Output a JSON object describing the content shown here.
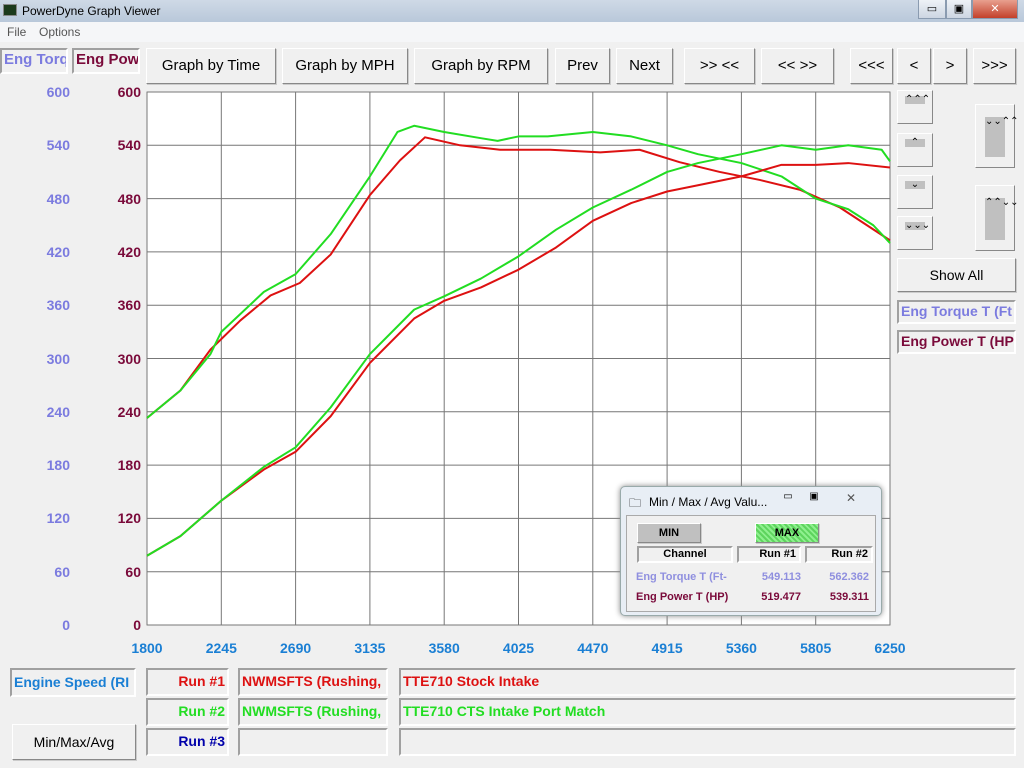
{
  "window": {
    "title": "PowerDyne Graph Viewer",
    "min": "▭",
    "max": "▣",
    "close": "✕"
  },
  "menu": [
    "File",
    "Options"
  ],
  "legend_top": {
    "torque": "Eng Torq",
    "power": "Eng Powe"
  },
  "toolbar": [
    "Graph by Time",
    "Graph by MPH",
    "Graph by RPM",
    "Prev",
    "Next",
    ">> <<",
    "<< >>",
    "<<<",
    "<",
    ">",
    ">>>"
  ],
  "right_panel": {
    "up_fast": "⌃⌃⌃",
    "up": "⌃",
    "down": "⌄",
    "down_fast": "⌄⌄⌄",
    "expand": "⌄⌄⌃⌃",
    "collapse": "⌃⌃⌄⌄",
    "show_all": "Show All",
    "channels": [
      "Eng Torque T (Ft",
      "Eng Power T (HP"
    ]
  },
  "bottom": {
    "x_channel": "Engine Speed (RI",
    "runs": [
      {
        "label": "Run #1",
        "name": "NWMSFTS (Rushing,",
        "desc": "TTE710 Stock Intake"
      },
      {
        "label": "Run #2",
        "name": "NWMSFTS (Rushing,",
        "desc": "TTE710 CTS Intake Port Match"
      },
      {
        "label": "Run #3",
        "name": "",
        "desc": ""
      }
    ],
    "minmax_button": "Min/Max/Avg"
  },
  "popup": {
    "title": "Min / Max / Avg Valu...",
    "min": "MIN",
    "max": "MAX",
    "headers": [
      "Channel",
      "Run #1",
      "Run #2"
    ],
    "rows": [
      {
        "channel": "Eng Torque T (Ft-",
        "run1": "549.113",
        "run2": "562.362"
      },
      {
        "channel": "Eng Power T (HP)",
        "run1": "519.477",
        "run2": "539.311"
      }
    ]
  },
  "colors": {
    "torque_axis": "#7b7bdf",
    "power_axis": "#7a0a3a",
    "x_axis": "#1a7fd4",
    "run1": "#dd1111",
    "run2": "#22dd22",
    "run3": "#0000aa"
  },
  "chart_data": {
    "type": "line",
    "xlim": [
      1800,
      6250
    ],
    "ylim": [
      0,
      600
    ],
    "grid": true,
    "x_ticks": [
      "1800",
      "2245",
      "2690",
      "3135",
      "3580",
      "4025",
      "4470",
      "4915",
      "5360",
      "5805",
      "6250"
    ],
    "y_ticks_torque": [
      "600",
      "540",
      "480",
      "420",
      "360",
      "300",
      "240",
      "180",
      "120",
      "60",
      "0"
    ],
    "y_ticks_power": [
      "600",
      "540",
      "480",
      "420",
      "360",
      "300",
      "240",
      "180",
      "120",
      "60",
      "0"
    ],
    "series": [
      {
        "name": "Run #1 Eng Torque",
        "color": "#dd1111",
        "x": [
          1800,
          2000,
          2180,
          2360,
          2540,
          2715,
          2900,
          3135,
          3315,
          3465,
          3675,
          3915,
          4215,
          4515,
          4750,
          4990,
          5230,
          5470,
          5710,
          5950,
          6250
        ],
        "y": [
          233,
          264,
          310,
          343,
          371,
          385,
          417,
          484,
          523,
          549,
          540,
          535,
          535,
          532,
          535,
          521,
          510,
          501,
          490,
          470,
          433
        ]
      },
      {
        "name": "Run #2 Eng Torque",
        "color": "#22dd22",
        "x": [
          1800,
          2000,
          2180,
          2245,
          2500,
          2690,
          2900,
          3135,
          3300,
          3400,
          3580,
          3800,
          3900,
          4025,
          4200,
          4470,
          4700,
          4915,
          5100,
          5360,
          5600,
          5805,
          6000,
          6150,
          6250
        ],
        "y": [
          233,
          264,
          305,
          330,
          375,
          395,
          440,
          505,
          555,
          562,
          555,
          548,
          545,
          550,
          550,
          555,
          550,
          540,
          530,
          520,
          505,
          480,
          468,
          450,
          430
        ]
      },
      {
        "name": "Run #1 Eng Power",
        "color": "#dd1111",
        "x": [
          1800,
          2000,
          2245,
          2500,
          2690,
          2900,
          3135,
          3400,
          3580,
          3800,
          4025,
          4250,
          4470,
          4700,
          4915,
          5100,
          5360,
          5600,
          5805,
          6000,
          6250
        ],
        "y": [
          78,
          100,
          140,
          175,
          195,
          235,
          295,
          345,
          365,
          380,
          400,
          425,
          455,
          475,
          488,
          495,
          505,
          518,
          518,
          520,
          515
        ]
      },
      {
        "name": "Run #2 Eng Power",
        "color": "#22dd22",
        "x": [
          1800,
          2000,
          2245,
          2500,
          2690,
          2900,
          3135,
          3400,
          3580,
          3800,
          4025,
          4250,
          4470,
          4700,
          4915,
          5100,
          5360,
          5600,
          5805,
          6000,
          6200,
          6250
        ],
        "y": [
          78,
          100,
          140,
          178,
          200,
          245,
          305,
          355,
          370,
          390,
          415,
          445,
          470,
          490,
          510,
          520,
          530,
          540,
          535,
          540,
          535,
          522
        ]
      }
    ]
  }
}
